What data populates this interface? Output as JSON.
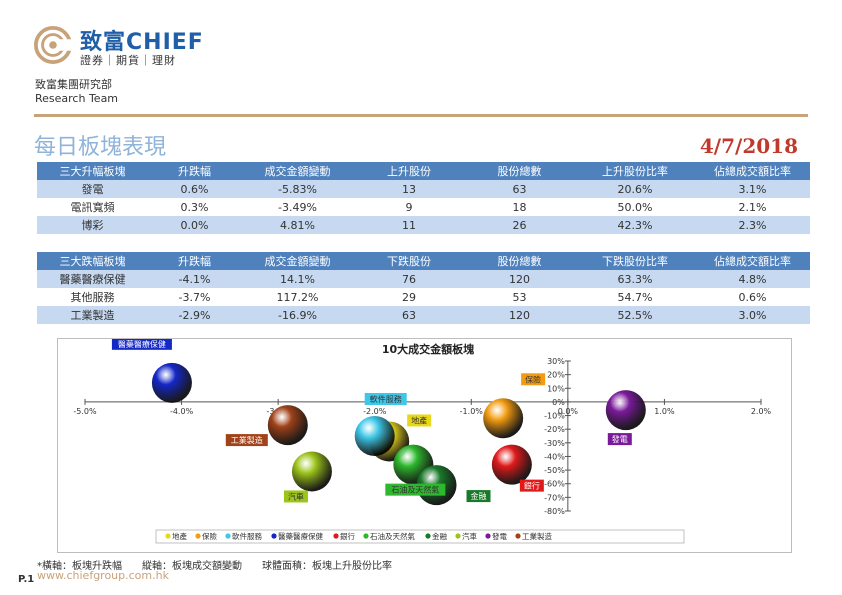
{
  "brand": {
    "name_zh": "致富",
    "name_en": "CHIEF",
    "tagline": "證券｜期貨｜理財",
    "dept_zh": "致富集團研究部",
    "dept_en": "Research Team",
    "colors": {
      "primary": "#1f5ea8",
      "accent": "#c8a37a"
    }
  },
  "page": {
    "title": "每日板塊表現",
    "date": "4/7/2018",
    "website": "www.chiefgroup.com.hk",
    "page_no": "P.1",
    "footnote": "*橫軸：板塊升跌幅　　縱軸：板塊成交額變動　　球體面積：板塊上升股份比率"
  },
  "gainers": {
    "headers": [
      "三大升幅板塊",
      "升跌幅",
      "成交金額變動",
      "上升股份",
      "股份總數",
      "上升股份比率",
      "佔總成交額比率"
    ],
    "rows": [
      [
        "發電",
        "0.6%",
        "-5.83%",
        "13",
        "63",
        "20.6%",
        "3.1%"
      ],
      [
        "電訊寬頻",
        "0.3%",
        "-3.49%",
        "9",
        "18",
        "50.0%",
        "2.1%"
      ],
      [
        "博彩",
        "0.0%",
        "4.81%",
        "11",
        "26",
        "42.3%",
        "2.3%"
      ]
    ]
  },
  "losers": {
    "headers": [
      "三大跌幅板塊",
      "升跌幅",
      "成交金額變動",
      "下跌股份",
      "股份總數",
      "下跌股份比率",
      "佔總成交額比率"
    ],
    "rows": [
      [
        "醫藥醫療保健",
        "-4.1%",
        "14.1%",
        "76",
        "120",
        "63.3%",
        "4.8%"
      ],
      [
        "其他服務",
        "-3.7%",
        "117.2%",
        "29",
        "53",
        "54.7%",
        "0.6%"
      ],
      [
        "工業製造",
        "-2.9%",
        "-16.9%",
        "63",
        "120",
        "52.5%",
        "3.0%"
      ]
    ]
  },
  "chart_data": {
    "type": "scatter",
    "title": "10大成交金額板塊",
    "xlim": [
      -5.0,
      2.0
    ],
    "ylim": [
      -80,
      30
    ],
    "x_ticks": [
      "-5.0%",
      "-4.0%",
      "-3.0%",
      "-2.0%",
      "-1.0%",
      "0.0%",
      "1.0%",
      "2.0%"
    ],
    "y_ticks": [
      "30%",
      "20%",
      "10%",
      "0%",
      "-10%",
      "-20%",
      "-30%",
      "-40%",
      "-50%",
      "-60%",
      "-70%",
      "-80%"
    ],
    "series": [
      {
        "name": "地產",
        "x": -1.85,
        "y": -29,
        "color": "#e8d81a",
        "label_color": "#e8d81a",
        "label_text_color": "#333333"
      },
      {
        "name": "保險",
        "x": -0.67,
        "y": -12,
        "color": "#f39c12",
        "label_color": "#f39c12",
        "label_text_color": "#333333"
      },
      {
        "name": "軟件服務",
        "x": -2.0,
        "y": -25,
        "color": "#3ec7e8",
        "label_color": "#3ec7e8",
        "label_text_color": "#333333"
      },
      {
        "name": "醫藥醫療保健",
        "x": -4.1,
        "y": 14,
        "color": "#1428c8",
        "label_color": "#1428c8",
        "label_text_color": "#ffffff"
      },
      {
        "name": "銀行",
        "x": -0.58,
        "y": -46,
        "color": "#e01a1a",
        "label_color": "#e01a1a",
        "label_text_color": "#ffffff"
      },
      {
        "name": "石油及天然氣",
        "x": -1.6,
        "y": -46,
        "color": "#2db82d",
        "label_color": "#2db82d",
        "label_text_color": "#333333"
      },
      {
        "name": "金融",
        "x": -1.36,
        "y": -61,
        "color": "#1a7a2a",
        "label_color": "#1a7a2a",
        "label_text_color": "#ffffff"
      },
      {
        "name": "汽車",
        "x": -2.65,
        "y": -51,
        "color": "#9cc41a",
        "label_color": "#9cc41a",
        "label_text_color": "#333333"
      },
      {
        "name": "發電",
        "x": 0.6,
        "y": -6,
        "color": "#7a1a9a",
        "label_color": "#7a1a9a",
        "label_text_color": "#ffffff"
      },
      {
        "name": "工業製造",
        "x": -2.9,
        "y": -17,
        "color": "#a0421a",
        "label_color": "#a0421a",
        "label_text_color": "#ffffff"
      }
    ],
    "legend_position": "bottom",
    "grid": false
  }
}
